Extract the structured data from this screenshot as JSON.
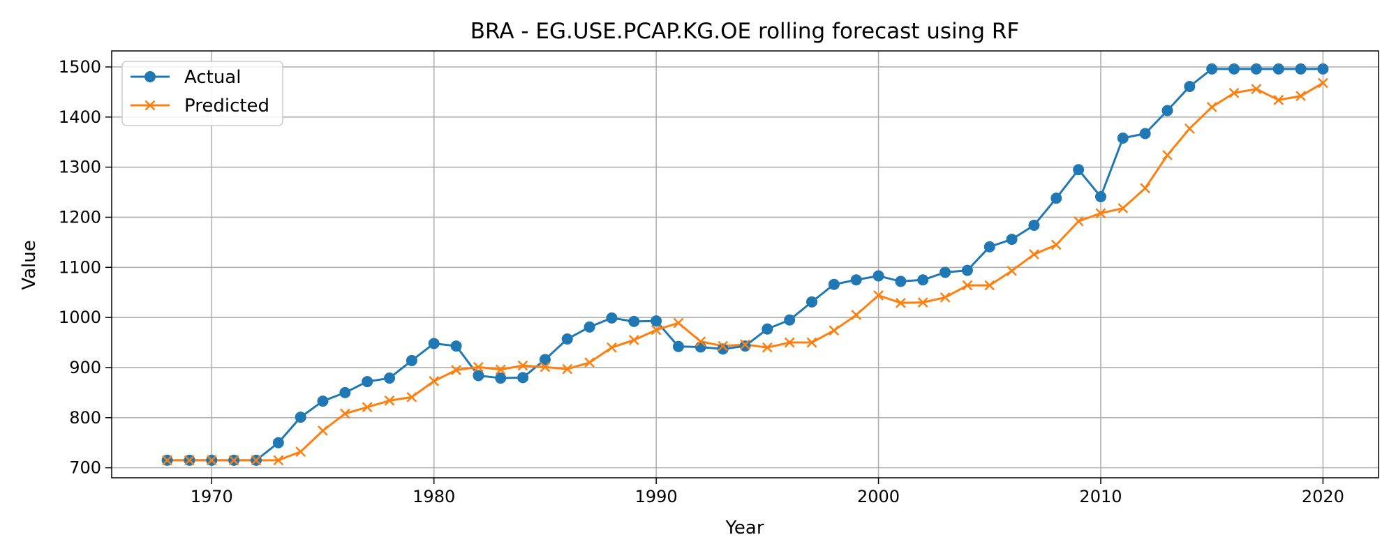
{
  "chart_data": {
    "type": "line",
    "title": "BRA - EG.USE.PCAP.KG.OE rolling forecast using RF",
    "xlabel": "Year",
    "ylabel": "Value",
    "xlim": [
      1965.5,
      2022.5
    ],
    "ylim": [
      680,
      1532
    ],
    "xticks": [
      1970,
      1980,
      1990,
      2000,
      2010,
      2020
    ],
    "yticks": [
      700,
      800,
      900,
      1000,
      1100,
      1200,
      1300,
      1400,
      1500
    ],
    "grid": true,
    "legend_position": "top-left",
    "x": [
      1968,
      1969,
      1970,
      1971,
      1972,
      1973,
      1974,
      1975,
      1976,
      1977,
      1978,
      1979,
      1980,
      1981,
      1982,
      1983,
      1984,
      1985,
      1986,
      1987,
      1988,
      1989,
      1990,
      1991,
      1992,
      1993,
      1994,
      1995,
      1996,
      1997,
      1998,
      1999,
      2000,
      2001,
      2002,
      2003,
      2004,
      2005,
      2006,
      2007,
      2008,
      2009,
      2010,
      2011,
      2012,
      2013,
      2014,
      2015,
      2016,
      2017,
      2018,
      2019,
      2020
    ],
    "series": [
      {
        "name": "Actual",
        "marker": "circle",
        "color": "#1f77b4",
        "values": [
          715,
          715,
          715,
          715,
          715,
          750,
          801,
          833,
          850,
          872,
          879,
          914,
          948,
          943,
          884,
          879,
          880,
          916,
          957,
          981,
          999,
          992,
          993,
          942,
          941,
          937,
          943,
          977,
          995,
          1031,
          1066,
          1075,
          1083,
          1072,
          1075,
          1090,
          1094,
          1141,
          1156,
          1184,
          1238,
          1295,
          1241,
          1358,
          1367,
          1413,
          1461,
          1496,
          1496,
          1496,
          1496,
          1496,
          1496
        ]
      },
      {
        "name": "Predicted",
        "marker": "x",
        "color": "#ff7f0e",
        "values": [
          715,
          715,
          715,
          715,
          715,
          715,
          732,
          774,
          808,
          821,
          834,
          841,
          873,
          895,
          901,
          896,
          904,
          901,
          897,
          910,
          940,
          955,
          975,
          989,
          952,
          943,
          946,
          940,
          950,
          950,
          974,
          1005,
          1044,
          1029,
          1030,
          1040,
          1064,
          1064,
          1093,
          1126,
          1145,
          1192,
          1208,
          1218,
          1258,
          1324,
          1377,
          1420,
          1448,
          1456,
          1434,
          1442,
          1468
        ]
      }
    ]
  }
}
